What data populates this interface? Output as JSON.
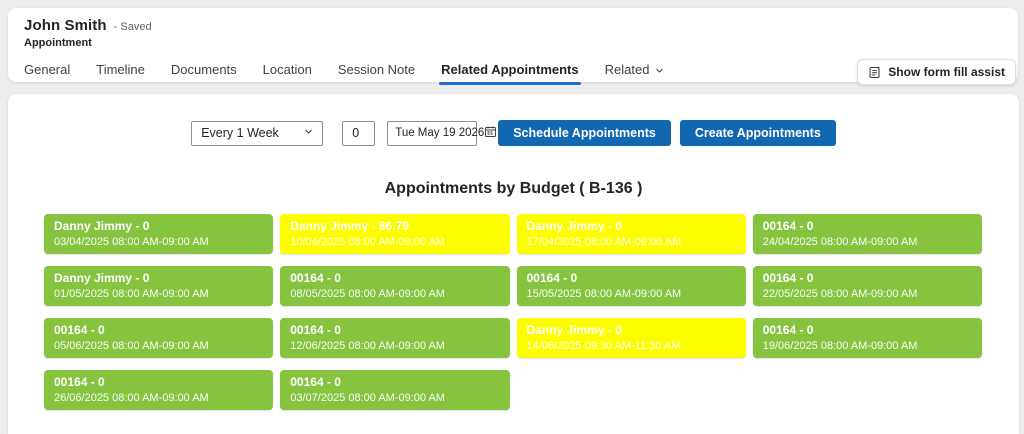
{
  "header": {
    "record_name": "John Smith",
    "save_status": "- Saved",
    "entity": "Appointment",
    "tabs": [
      {
        "label": "General",
        "active": false
      },
      {
        "label": "Timeline",
        "active": false
      },
      {
        "label": "Documents",
        "active": false
      },
      {
        "label": "Location",
        "active": false
      },
      {
        "label": "Session Note",
        "active": false
      },
      {
        "label": "Related Appointments",
        "active": true
      },
      {
        "label": "Related",
        "active": false,
        "chevron": true
      }
    ],
    "form_fill_button": "Show form fill assist"
  },
  "controls": {
    "recurrence_value": "Every 1 Week",
    "offset_value": "0",
    "date_value": "Tue May 19 2026",
    "schedule_button": "Schedule Appointments",
    "create_button": "Create Appointments"
  },
  "section": {
    "title": "Appointments by Budget ( B-136 )"
  },
  "appointments": [
    {
      "label": "Danny Jimmy - 0",
      "time": "03/04/2025 08:00 AM-09:00 AM",
      "status": "green"
    },
    {
      "label": "Danny Jimmy - 86.79",
      "time": "10/04/2025 08:00 AM-09:00 AM",
      "status": "yellow"
    },
    {
      "label": "Danny Jimmy - 0",
      "time": "17/04/2025 08:00 AM-09:00 AM",
      "status": "yellow"
    },
    {
      "label": "00164 - 0",
      "time": "24/04/2025 08:00 AM-09:00 AM",
      "status": "green"
    },
    {
      "label": "Danny Jimmy - 0",
      "time": "01/05/2025 08:00 AM-09:00 AM",
      "status": "green"
    },
    {
      "label": "00164 - 0",
      "time": "08/05/2025 08:00 AM-09:00 AM",
      "status": "green"
    },
    {
      "label": "00164 - 0",
      "time": "15/05/2025 08:00 AM-09:00 AM",
      "status": "green"
    },
    {
      "label": "00164 - 0",
      "time": "22/05/2025 08:00 AM-09:00 AM",
      "status": "green"
    },
    {
      "label": "00164 - 0",
      "time": "05/06/2025 08:00 AM-09:00 AM",
      "status": "green"
    },
    {
      "label": "00164 - 0",
      "time": "12/06/2025 08:00 AM-09:00 AM",
      "status": "green"
    },
    {
      "label": "Danny Jimmy - 0",
      "time": "14/06/2025 09:30 AM-11:30 AM",
      "status": "yellow"
    },
    {
      "label": "00164 - 0",
      "time": "19/06/2025 08:00 AM-09:00 AM",
      "status": "green"
    },
    {
      "label": "00164 - 0",
      "time": "26/06/2025 08:00 AM-09:00 AM",
      "status": "green"
    },
    {
      "label": "00164 - 0",
      "time": "03/07/2025 08:00 AM-09:00 AM",
      "status": "green"
    }
  ],
  "colors": {
    "green": "#86c440",
    "yellow": "#fdfd00",
    "button_blue": "#1267b1",
    "tab_accent": "#2266e3"
  }
}
